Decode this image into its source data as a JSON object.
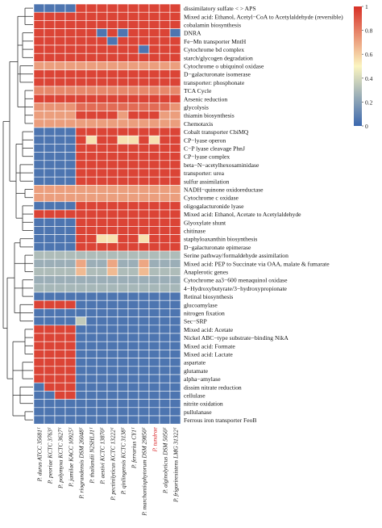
{
  "chart_data": {
    "type": "heatmap",
    "rows": [
      "dissimilatory sulfate < > APS",
      "Mixed acid: Ethanol, Acetyl−CoA to Acetylaldehyde (reversible)",
      "cobalamin biosynthesis",
      "DNRA",
      "Fe−Mn transporter MntH",
      "Cytochrome bd complex",
      "starch/glycogen degradation",
      "Cytochrome o ubiquinol oxidase",
      "D−galacturonate isomerase",
      "transporter: phosphonate",
      "TCA Cycle",
      "Arsenic reduction",
      "glycolysis",
      "thiamin biosynthesis",
      "Chemotaxis",
      "Cobalt transporter CbiMQ",
      "CP−lyase operon",
      "C−P lyase cleavage PhnJ",
      "CP−lyase complex",
      "beta−N−acetylhexosaminidase",
      "transporter: urea",
      "sulfur assimilation",
      "NADH−quinone oxidoreductase",
      "Cytochrome c oxidase",
      "oligogalacturonide lyase",
      "Mixed acid: Ethanol, Acetate to Acetylaldehyde",
      "Glyoxylate shunt",
      "chitinase",
      "staphyloaxanthin biosynthesis",
      "D−galacturonate epimerase",
      "Serine pathway/formaldehyde assimilation",
      "Mixed acid: PEP to Succinate via OAA, malate & fumarate",
      "Anaplerotic genes",
      "Cytochrome aa3−600 menaquinol oxidase",
      "4−Hydroxybutyrate/3−hydroxypropionate",
      "Retinal biosynthesis",
      "glucoamylase",
      "nitrogen fixation",
      "Sec−SRP",
      "Mixed acid: Acetate",
      "Nickel ABC−type substrate−binding NikA",
      "Mixed acid: Formate",
      "Mixed acid: Lactate",
      "aspartate",
      "glutamate",
      "alpha−amylase",
      "dissim nitrate reduction",
      "cellulase",
      "nitrite oxidation",
      "pullulanase",
      "Ferrous iron transporter FeoB"
    ],
    "columns": [
      "P. durus ATCC 35681ᵀ",
      "P. peoriae KCTC 3763ᵀ",
      "P. polymyxa KCTC 3627ᵀ",
      "P. jamilae KACC 10925ᵀ",
      "P. riograndensis DSM 26048ᵀ",
      "P. thailandii N2SHLJ1ᵀ",
      "P. aestivi KCTC 13870ᵀ",
      "P. pectinilyticus KCTC 13222ᵀ",
      "P. qinlingensis KCTC 3138ᵀ",
      "P. ferrarius CY1ᵀ",
      "P. marchantiophytorum DSM 29850ᵀ",
      "P. tundrae",
      "P. alginolyticus DSM 5050ᵀ",
      "P. frigoriresistens LMG 31322ᵀ"
    ],
    "highlight_column": "P. tundrae",
    "highlight_color": "#d7191c",
    "values": [
      [
        0.05,
        0.05,
        0.05,
        0.05,
        0.95,
        0.95,
        0.95,
        0.95,
        0.95,
        0.95,
        0.95,
        0.95,
        0.95,
        0.95
      ],
      [
        0.95,
        0.95,
        0.95,
        0.95,
        0.95,
        0.95,
        0.95,
        0.95,
        0.95,
        0.95,
        0.95,
        0.95,
        0.95,
        0.95
      ],
      [
        0.95,
        0.95,
        0.95,
        0.95,
        0.95,
        0.95,
        0.95,
        0.95,
        0.95,
        0.95,
        0.95,
        0.95,
        0.95,
        0.95
      ],
      [
        0.95,
        0.95,
        0.95,
        0.95,
        0.95,
        0.95,
        0.05,
        0.95,
        0.05,
        0.95,
        0.95,
        0.95,
        0.95,
        0.05
      ],
      [
        0.95,
        0.95,
        0.95,
        0.95,
        0.95,
        0.95,
        0.95,
        0.05,
        0.95,
        0.95,
        0.95,
        0.95,
        0.95,
        0.95
      ],
      [
        0.95,
        0.95,
        0.95,
        0.95,
        0.95,
        0.95,
        0.95,
        0.95,
        0.95,
        0.95,
        0.05,
        0.95,
        0.95,
        0.95
      ],
      [
        0.95,
        0.95,
        0.95,
        0.95,
        0.95,
        0.95,
        0.95,
        0.95,
        0.95,
        0.95,
        0.95,
        0.95,
        0.95,
        0.95
      ],
      [
        0.72,
        0.72,
        0.72,
        0.72,
        0.72,
        0.72,
        0.72,
        0.72,
        0.72,
        0.72,
        0.72,
        0.72,
        0.72,
        0.72
      ],
      [
        0.95,
        0.95,
        0.95,
        0.95,
        0.95,
        0.95,
        0.95,
        0.95,
        0.95,
        0.95,
        0.95,
        0.95,
        0.95,
        0.95
      ],
      [
        0.95,
        0.95,
        0.95,
        0.95,
        0.95,
        0.95,
        0.95,
        0.95,
        0.95,
        0.95,
        0.95,
        0.95,
        0.95,
        0.95
      ],
      [
        0.78,
        0.78,
        0.78,
        0.78,
        0.78,
        0.78,
        0.78,
        0.78,
        0.78,
        0.78,
        0.78,
        0.78,
        0.78,
        0.78
      ],
      [
        0.95,
        0.95,
        0.95,
        0.95,
        0.95,
        0.95,
        0.95,
        0.95,
        0.95,
        0.95,
        0.95,
        0.95,
        0.95,
        0.95
      ],
      [
        0.75,
        0.75,
        0.75,
        0.75,
        0.85,
        0.85,
        0.85,
        0.85,
        0.85,
        0.85,
        0.85,
        0.85,
        0.85,
        0.75
      ],
      [
        0.72,
        0.72,
        0.72,
        0.72,
        0.95,
        0.95,
        0.95,
        0.95,
        0.72,
        0.95,
        0.95,
        0.95,
        0.72,
        0.72
      ],
      [
        0.72,
        0.72,
        0.72,
        0.72,
        0.72,
        0.72,
        0.72,
        0.72,
        0.72,
        0.72,
        0.72,
        0.72,
        0.72,
        0.72
      ],
      [
        0.05,
        0.05,
        0.05,
        0.05,
        0.95,
        0.95,
        0.95,
        0.95,
        0.95,
        0.95,
        0.95,
        0.95,
        0.95,
        0.95
      ],
      [
        0.05,
        0.05,
        0.05,
        0.05,
        0.95,
        0.55,
        0.95,
        0.95,
        0.55,
        0.55,
        0.95,
        0.55,
        0.95,
        0.95
      ],
      [
        0.05,
        0.05,
        0.05,
        0.05,
        0.95,
        0.95,
        0.95,
        0.95,
        0.95,
        0.95,
        0.95,
        0.95,
        0.95,
        0.95
      ],
      [
        0.05,
        0.05,
        0.05,
        0.05,
        0.95,
        0.95,
        0.95,
        0.95,
        0.95,
        0.95,
        0.95,
        0.95,
        0.95,
        0.95
      ],
      [
        0.05,
        0.05,
        0.05,
        0.05,
        0.95,
        0.95,
        0.95,
        0.95,
        0.95,
        0.95,
        0.95,
        0.95,
        0.95,
        0.95
      ],
      [
        0.05,
        0.05,
        0.05,
        0.05,
        0.95,
        0.95,
        0.95,
        0.95,
        0.95,
        0.95,
        0.95,
        0.95,
        0.95,
        0.95
      ],
      [
        0.05,
        0.05,
        0.05,
        0.05,
        0.95,
        0.95,
        0.95,
        0.95,
        0.95,
        0.95,
        0.95,
        0.95,
        0.95,
        0.95
      ],
      [
        0.72,
        0.72,
        0.72,
        0.72,
        0.72,
        0.72,
        0.72,
        0.72,
        0.72,
        0.72,
        0.72,
        0.72,
        0.72,
        0.72
      ],
      [
        0.72,
        0.72,
        0.72,
        0.72,
        0.72,
        0.72,
        0.72,
        0.72,
        0.72,
        0.72,
        0.72,
        0.72,
        0.72,
        0.72
      ],
      [
        0.05,
        0.05,
        0.05,
        0.05,
        0.95,
        0.95,
        0.95,
        0.95,
        0.95,
        0.95,
        0.95,
        0.95,
        0.95,
        0.95
      ],
      [
        0.95,
        0.95,
        0.95,
        0.95,
        0.95,
        0.95,
        0.95,
        0.95,
        0.95,
        0.95,
        0.95,
        0.95,
        0.95,
        0.95
      ],
      [
        0.05,
        0.05,
        0.05,
        0.05,
        0.95,
        0.95,
        0.95,
        0.95,
        0.95,
        0.95,
        0.95,
        0.95,
        0.95,
        0.95
      ],
      [
        0.05,
        0.05,
        0.05,
        0.05,
        0.95,
        0.95,
        0.95,
        0.95,
        0.95,
        0.95,
        0.95,
        0.95,
        0.95,
        0.95
      ],
      [
        0.05,
        0.05,
        0.05,
        0.05,
        0.95,
        0.95,
        0.55,
        0.55,
        0.95,
        0.95,
        0.55,
        0.95,
        0.95,
        0.95
      ],
      [
        0.05,
        0.05,
        0.05,
        0.05,
        0.95,
        0.95,
        0.95,
        0.95,
        0.95,
        0.95,
        0.95,
        0.95,
        0.95,
        0.95
      ],
      [
        0.3,
        0.3,
        0.3,
        0.3,
        0.3,
        0.3,
        0.3,
        0.3,
        0.3,
        0.3,
        0.3,
        0.3,
        0.3,
        0.3
      ],
      [
        0.25,
        0.25,
        0.25,
        0.25,
        0.7,
        0.25,
        0.25,
        0.7,
        0.25,
        0.25,
        0.7,
        0.25,
        0.25,
        0.25
      ],
      [
        0.3,
        0.3,
        0.3,
        0.3,
        0.65,
        0.3,
        0.3,
        0.65,
        0.3,
        0.3,
        0.65,
        0.3,
        0.3,
        0.3
      ],
      [
        0.25,
        0.25,
        0.25,
        0.25,
        0.25,
        0.25,
        0.25,
        0.25,
        0.25,
        0.25,
        0.25,
        0.25,
        0.25,
        0.25
      ],
      [
        0.28,
        0.28,
        0.28,
        0.28,
        0.28,
        0.28,
        0.28,
        0.28,
        0.28,
        0.28,
        0.28,
        0.28,
        0.28,
        0.28
      ],
      [
        0.05,
        0.05,
        0.05,
        0.05,
        0.05,
        0.05,
        0.05,
        0.05,
        0.05,
        0.05,
        0.05,
        0.05,
        0.05,
        0.05
      ],
      [
        0.95,
        0.95,
        0.95,
        0.95,
        0.05,
        0.05,
        0.05,
        0.05,
        0.05,
        0.05,
        0.05,
        0.05,
        0.05,
        0.05
      ],
      [
        0.05,
        0.05,
        0.05,
        0.05,
        0.05,
        0.05,
        0.05,
        0.05,
        0.05,
        0.05,
        0.05,
        0.05,
        0.05,
        0.05
      ],
      [
        0.05,
        0.05,
        0.05,
        0.05,
        0.35,
        0.05,
        0.05,
        0.05,
        0.05,
        0.05,
        0.05,
        0.05,
        0.05,
        0.05
      ],
      [
        0.95,
        0.95,
        0.95,
        0.95,
        0.05,
        0.05,
        0.05,
        0.05,
        0.05,
        0.05,
        0.05,
        0.05,
        0.05,
        0.05
      ],
      [
        0.95,
        0.95,
        0.95,
        0.95,
        0.05,
        0.05,
        0.05,
        0.05,
        0.05,
        0.05,
        0.05,
        0.05,
        0.05,
        0.05
      ],
      [
        0.95,
        0.95,
        0.95,
        0.95,
        0.05,
        0.05,
        0.05,
        0.05,
        0.05,
        0.05,
        0.05,
        0.05,
        0.05,
        0.05
      ],
      [
        0.95,
        0.95,
        0.95,
        0.95,
        0.05,
        0.05,
        0.05,
        0.05,
        0.05,
        0.05,
        0.05,
        0.05,
        0.05,
        0.05
      ],
      [
        0.95,
        0.95,
        0.95,
        0.95,
        0.05,
        0.05,
        0.05,
        0.05,
        0.05,
        0.05,
        0.05,
        0.05,
        0.05,
        0.05
      ],
      [
        0.95,
        0.95,
        0.95,
        0.95,
        0.05,
        0.05,
        0.05,
        0.05,
        0.05,
        0.05,
        0.05,
        0.05,
        0.05,
        0.05
      ],
      [
        0.95,
        0.95,
        0.95,
        0.95,
        0.05,
        0.05,
        0.05,
        0.05,
        0.05,
        0.05,
        0.05,
        0.05,
        0.05,
        0.05
      ],
      [
        0.05,
        0.95,
        0.95,
        0.95,
        0.05,
        0.05,
        0.05,
        0.05,
        0.05,
        0.05,
        0.05,
        0.05,
        0.05,
        0.05
      ],
      [
        0.05,
        0.05,
        0.95,
        0.95,
        0.05,
        0.05,
        0.05,
        0.05,
        0.05,
        0.05,
        0.05,
        0.05,
        0.05,
        0.05
      ],
      [
        0.05,
        0.05,
        0.05,
        0.05,
        0.05,
        0.05,
        0.05,
        0.05,
        0.05,
        0.05,
        0.05,
        0.05,
        0.05,
        0.05
      ],
      [
        0.05,
        0.05,
        0.05,
        0.05,
        0.05,
        0.05,
        0.05,
        0.05,
        0.05,
        0.05,
        0.05,
        0.05,
        0.05,
        0.05
      ],
      [
        0.05,
        0.05,
        0.05,
        0.05,
        0.05,
        0.05,
        0.05,
        0.05,
        0.05,
        0.05,
        0.05,
        0.05,
        0.05,
        0.05
      ]
    ],
    "color_scale": {
      "min": 0,
      "max": 1,
      "colors": [
        "#3a67ae",
        "#fbf5c0",
        "#d73027"
      ],
      "ticks": [
        "0",
        "0.2",
        "0.4",
        "0.6",
        "0.8",
        "1"
      ]
    },
    "row_dendrogram": true,
    "legend_position": "right"
  }
}
